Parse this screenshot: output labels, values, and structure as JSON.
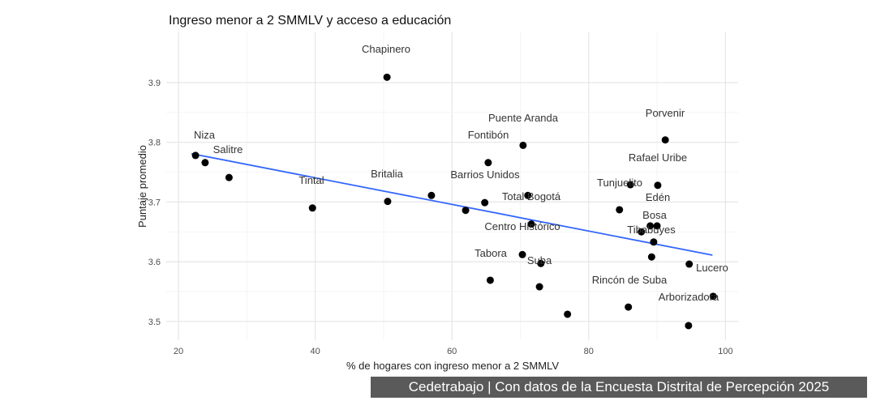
{
  "chart_data": {
    "type": "scatter",
    "title": "Ingreso menor a 2 SMMLV y acceso a educación",
    "xlabel": "% de hogares con ingreso menor a 2 SMMLV",
    "ylabel": "Puntaje promedio",
    "xlim": [
      17.5,
      101.5
    ],
    "ylim": [
      3.475,
      3.95
    ],
    "xticks": [
      "20",
      "40",
      "60",
      "80",
      "100"
    ],
    "yticks": [
      "3.5",
      "3.6",
      "3.7",
      "3.8",
      "3.9"
    ],
    "grid": true,
    "points": [
      [
        22.5,
        3.778
      ],
      [
        23.9,
        3.766
      ],
      [
        27.4,
        3.741
      ],
      [
        39.6,
        3.69
      ],
      [
        50.5,
        3.909
      ],
      [
        50.6,
        3.701
      ],
      [
        57.0,
        3.711
      ],
      [
        62.0,
        3.686
      ],
      [
        65.3,
        3.766
      ],
      [
        64.8,
        3.699
      ],
      [
        70.4,
        3.795
      ],
      [
        71.1,
        3.711
      ],
      [
        71.6,
        3.663
      ],
      [
        70.3,
        3.612
      ],
      [
        65.6,
        3.569
      ],
      [
        73.0,
        3.597
      ],
      [
        72.8,
        3.558
      ],
      [
        76.9,
        3.512
      ],
      [
        84.5,
        3.687
      ],
      [
        86.1,
        3.729
      ],
      [
        85.8,
        3.524
      ],
      [
        87.7,
        3.65
      ],
      [
        89.0,
        3.66
      ],
      [
        90.0,
        3.66
      ],
      [
        90.1,
        3.728
      ],
      [
        91.2,
        3.804
      ],
      [
        89.5,
        3.633
      ],
      [
        89.2,
        3.608
      ],
      [
        94.7,
        3.596
      ],
      [
        98.2,
        3.542
      ],
      [
        94.6,
        3.493
      ]
    ],
    "labels": [
      "Niza",
      "Salitre",
      "Tintal",
      "Chapinero",
      "Britalia",
      "Barrios Unidos",
      "Fontibón",
      "Puente Aranda",
      "Total Bogotá",
      "Centro Histórico",
      "Tabora",
      "Suba",
      "Tunjuelito",
      "Rafael Uribe",
      "Porvenir",
      "Edén",
      "Bosa",
      "Tibabuyes",
      "Lucero",
      "Rincón de Suba",
      "Arborizadora"
    ],
    "trendline": {
      "x": [
        21.9,
        98.1
      ],
      "y": [
        3.781,
        3.611
      ],
      "color": "#3366ff"
    },
    "point_color": "#000000"
  },
  "footer": "Cedetrabajo | Con datos de la Encuesta Distrital de Percepción 2025"
}
